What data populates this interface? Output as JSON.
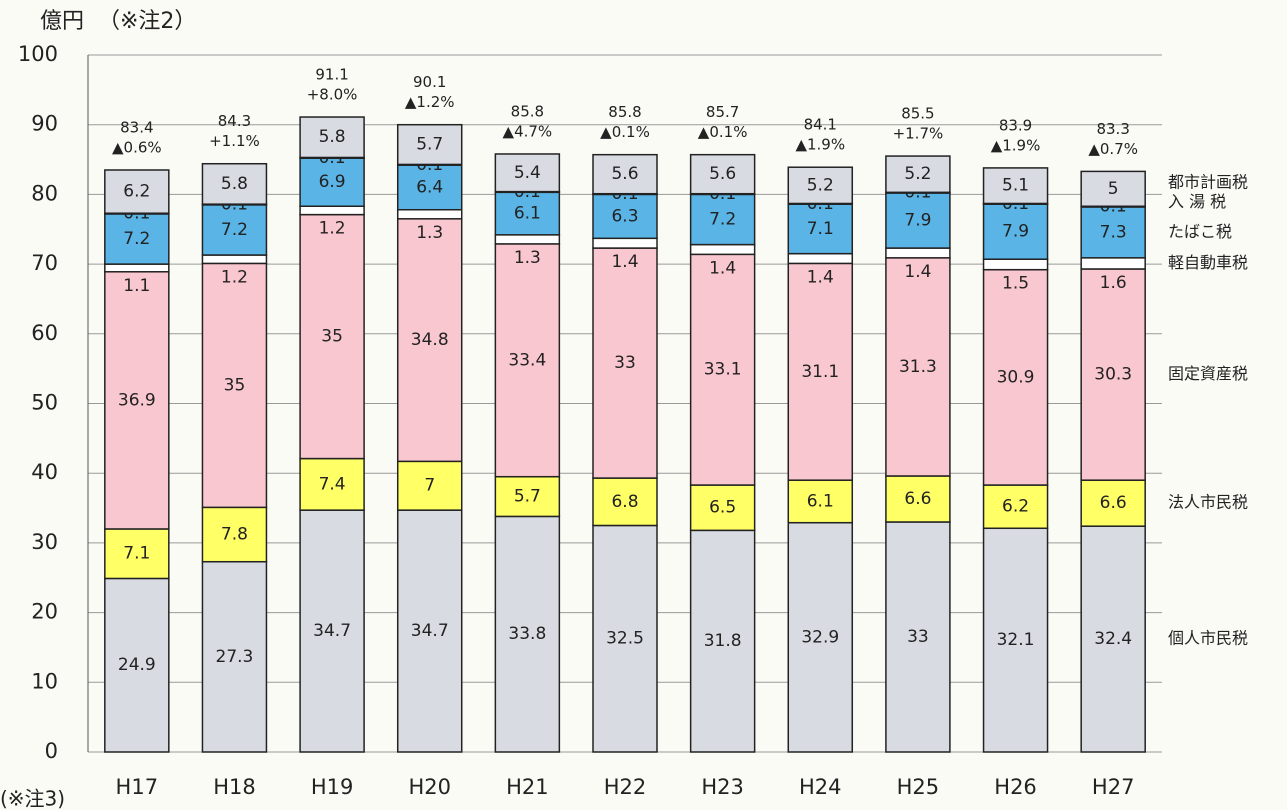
{
  "chart_data": {
    "type": "stacked_bar",
    "unit_label": "億円",
    "note2": "（※注2）",
    "note3": "(※注3)",
    "categories": [
      "H17",
      "H18",
      "H19",
      "H20",
      "H21",
      "H22",
      "H23",
      "H24",
      "H25",
      "H26",
      "H27"
    ],
    "series": [
      {
        "name": "個人市民税",
        "color": "#d9dbe3",
        "values": [
          24.9,
          27.3,
          34.7,
          34.7,
          33.8,
          32.5,
          31.8,
          32.9,
          33.0,
          32.1,
          32.4
        ]
      },
      {
        "name": "法人市民税",
        "color": "#ffff66",
        "values": [
          7.1,
          7.8,
          7.4,
          7.0,
          5.7,
          6.8,
          6.5,
          6.1,
          6.6,
          6.2,
          6.6
        ]
      },
      {
        "name": "固定資産税",
        "color": "#f9c7cf",
        "values": [
          36.9,
          35.0,
          35.0,
          34.8,
          33.4,
          33.0,
          33.1,
          31.1,
          31.3,
          30.9,
          30.3
        ]
      },
      {
        "name": "軽自動車税",
        "color": "#ffffff",
        "values": [
          1.1,
          1.2,
          1.2,
          1.3,
          1.3,
          1.4,
          1.4,
          1.4,
          1.4,
          1.5,
          1.6
        ]
      },
      {
        "name": "たばこ税",
        "color": "#5ab4e6",
        "values": [
          7.2,
          7.2,
          6.9,
          6.4,
          6.1,
          6.3,
          7.2,
          7.1,
          7.9,
          7.9,
          7.3
        ]
      },
      {
        "name": "入 湯 税",
        "color": "#5ab4e6",
        "values": [
          0.1,
          0.1,
          0.1,
          0.1,
          0.1,
          0.1,
          0.1,
          0.1,
          0.1,
          0.1,
          0.1
        ]
      },
      {
        "name": "都市計画税",
        "color": "#d9dbe3",
        "values": [
          6.2,
          5.8,
          5.8,
          5.7,
          5.4,
          5.6,
          5.6,
          5.2,
          5.2,
          5.1,
          5.0
        ]
      }
    ],
    "totals": [
      83.4,
      84.3,
      91.1,
      90.1,
      85.8,
      85.8,
      85.7,
      84.1,
      85.5,
      83.9,
      83.3
    ],
    "changes": [
      "▲0.6%",
      "+1.1%",
      "+8.0%",
      "▲1.2%",
      "▲4.7%",
      "▲0.1%",
      "▲0.1%",
      "▲1.9%",
      "+1.7%",
      "▲1.9%",
      "▲0.7%"
    ],
    "ylim": [
      0,
      100
    ],
    "yticks": [
      0,
      10,
      20,
      30,
      40,
      50,
      60,
      70,
      80,
      90,
      100
    ],
    "grid": true
  }
}
